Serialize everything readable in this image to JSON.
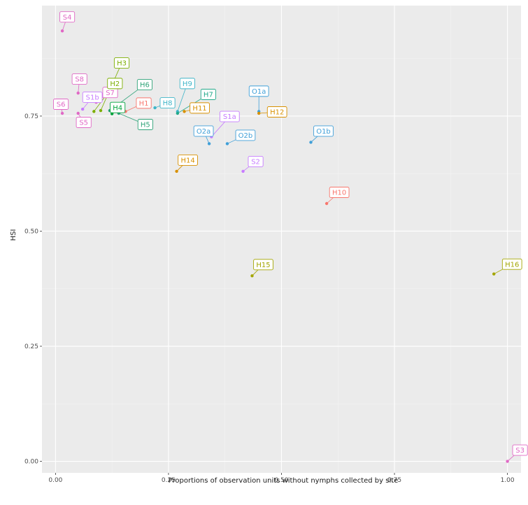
{
  "chart_data": {
    "type": "scatter",
    "xlabel": "Proportions of observation units without nymphs collected by site",
    "ylabel": "HSI",
    "xlim": [
      -0.03,
      1.03
    ],
    "ylim": [
      -0.025,
      0.99
    ],
    "x_ticks": [
      0.0,
      0.25,
      0.5,
      0.75,
      1.0
    ],
    "x_tick_labels": [
      "0.00",
      "0.25",
      "0.50",
      "0.75",
      "1.00"
    ],
    "y_ticks": [
      0.0,
      0.25,
      0.5,
      0.75
    ],
    "y_tick_labels": [
      "0.00",
      "0.25",
      "0.50",
      "0.75"
    ],
    "grid": true,
    "background": "#ebebeb",
    "legend": "none",
    "points": [
      {
        "label": "S4",
        "x": 0.015,
        "y": 0.935,
        "color": "#e068c5"
      },
      {
        "label": "S8",
        "x": 0.05,
        "y": 0.8,
        "color": "#e068c5"
      },
      {
        "label": "S7",
        "x": 0.09,
        "y": 0.78,
        "color": "#e068c5"
      },
      {
        "label": "S6",
        "x": 0.015,
        "y": 0.756,
        "color": "#e068c5"
      },
      {
        "label": "S5",
        "x": 0.05,
        "y": 0.756,
        "color": "#e068c5"
      },
      {
        "label": "S1b",
        "x": 0.06,
        "y": 0.765,
        "color": "#c77cff"
      },
      {
        "label": "H3",
        "x": 0.1,
        "y": 0.762,
        "color": "#7cae00"
      },
      {
        "label": "H2",
        "x": 0.085,
        "y": 0.76,
        "color": "#7cae00"
      },
      {
        "label": "H4",
        "x": 0.125,
        "y": 0.755,
        "color": "#00a33c"
      },
      {
        "label": "H6",
        "x": 0.12,
        "y": 0.762,
        "color": "#2fa378"
      },
      {
        "label": "H5",
        "x": 0.14,
        "y": 0.756,
        "color": "#2fa378"
      },
      {
        "label": "H1",
        "x": 0.155,
        "y": 0.76,
        "color": "#f8766d"
      },
      {
        "label": "H8",
        "x": 0.22,
        "y": 0.768,
        "color": "#3fb5c8"
      },
      {
        "label": "H9",
        "x": 0.27,
        "y": 0.76,
        "color": "#3fb5c8"
      },
      {
        "label": "H7",
        "x": 0.27,
        "y": 0.756,
        "color": "#22a98a"
      },
      {
        "label": "H11",
        "x": 0.285,
        "y": 0.76,
        "color": "#d89000"
      },
      {
        "label": "S1a",
        "x": 0.345,
        "y": 0.705,
        "color": "#c77cff"
      },
      {
        "label": "O2a",
        "x": 0.34,
        "y": 0.69,
        "color": "#3f9fd8"
      },
      {
        "label": "O2b",
        "x": 0.38,
        "y": 0.69,
        "color": "#3f9fd8"
      },
      {
        "label": "O1a",
        "x": 0.45,
        "y": 0.76,
        "color": "#3f9fd8"
      },
      {
        "label": "H12",
        "x": 0.45,
        "y": 0.756,
        "color": "#d89000"
      },
      {
        "label": "O1b",
        "x": 0.565,
        "y": 0.693,
        "color": "#3f9fd8"
      },
      {
        "label": "H14",
        "x": 0.268,
        "y": 0.63,
        "color": "#d89000"
      },
      {
        "label": "S2",
        "x": 0.415,
        "y": 0.63,
        "color": "#c77cff"
      },
      {
        "label": "H10",
        "x": 0.6,
        "y": 0.56,
        "color": "#f8766d"
      },
      {
        "label": "H15",
        "x": 0.435,
        "y": 0.403,
        "color": "#a3a500"
      },
      {
        "label": "H16",
        "x": 0.97,
        "y": 0.407,
        "color": "#a3a500"
      },
      {
        "label": "S3",
        "x": 1.0,
        "y": 0.0,
        "color": "#e068c5"
      }
    ]
  }
}
